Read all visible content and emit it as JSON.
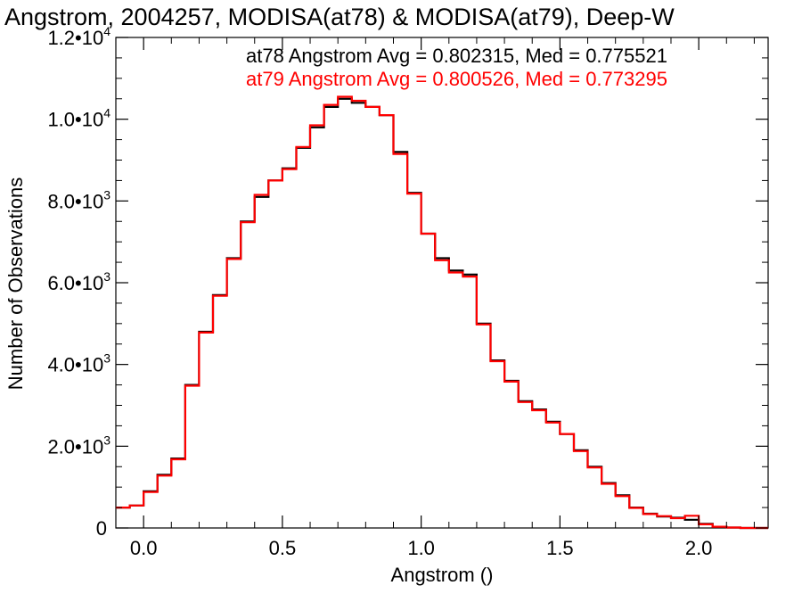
{
  "chart_data": {
    "type": "line",
    "title": "Angstrom, 2004257, MODISA(at78) & MODISA(at79), Deep-W",
    "xlabel": "Angstrom ()",
    "ylabel": "Number of Observations",
    "xlim": [
      -0.1,
      2.25
    ],
    "ylim": [
      0,
      12000
    ],
    "grid": false,
    "x_ticks": [
      {
        "value": 0.0,
        "label": "0.0"
      },
      {
        "value": 0.5,
        "label": "0.5"
      },
      {
        "value": 1.0,
        "label": "1.0"
      },
      {
        "value": 1.5,
        "label": "1.5"
      },
      {
        "value": 2.0,
        "label": "2.0"
      }
    ],
    "y_ticks": [
      {
        "value": 0,
        "mant": "0",
        "exp": ""
      },
      {
        "value": 2000,
        "mant": "2.0•10",
        "exp": "3"
      },
      {
        "value": 4000,
        "mant": "4.0•10",
        "exp": "3"
      },
      {
        "value": 6000,
        "mant": "6.0•10",
        "exp": "3"
      },
      {
        "value": 8000,
        "mant": "8.0•10",
        "exp": "3"
      },
      {
        "value": 10000,
        "mant": "1.0•10",
        "exp": "4"
      },
      {
        "value": 12000,
        "mant": "1.2•10",
        "exp": "4"
      }
    ],
    "annotations": [
      {
        "text": "at78 Angstrom Avg = 0.802315, Med = 0.775521",
        "color": "#000000"
      },
      {
        "text": "at79 Angstrom Avg = 0.800526, Med = 0.773295",
        "color": "#ff0000"
      }
    ],
    "series": [
      {
        "color": "#000000",
        "x": [
          -0.1,
          -0.05,
          0.0,
          0.05,
          0.1,
          0.15,
          0.2,
          0.25,
          0.3,
          0.35,
          0.4,
          0.45,
          0.5,
          0.55,
          0.6,
          0.65,
          0.7,
          0.75,
          0.8,
          0.85,
          0.9,
          0.95,
          1.0,
          1.05,
          1.1,
          1.15,
          1.2,
          1.25,
          1.3,
          1.35,
          1.4,
          1.45,
          1.5,
          1.55,
          1.6,
          1.65,
          1.7,
          1.75,
          1.8,
          1.85,
          1.9,
          1.95,
          2.0,
          2.05,
          2.1,
          2.15,
          2.2
        ],
        "values": [
          500,
          550,
          900,
          1300,
          1700,
          3500,
          4800,
          5700,
          6600,
          7500,
          8100,
          8500,
          8800,
          9300,
          9800,
          10300,
          10500,
          10400,
          10300,
          10100,
          9200,
          8200,
          7200,
          6600,
          6300,
          6200,
          5000,
          4100,
          3600,
          3100,
          2900,
          2600,
          2300,
          1900,
          1500,
          1100,
          800,
          500,
          350,
          280,
          250,
          200,
          100,
          30,
          10,
          0,
          0
        ]
      },
      {
        "color": "#ff0000",
        "x": [
          -0.1,
          -0.05,
          0.0,
          0.05,
          0.1,
          0.15,
          0.2,
          0.25,
          0.3,
          0.35,
          0.4,
          0.45,
          0.5,
          0.55,
          0.6,
          0.65,
          0.7,
          0.75,
          0.8,
          0.85,
          0.9,
          0.95,
          1.0,
          1.05,
          1.1,
          1.15,
          1.2,
          1.25,
          1.3,
          1.35,
          1.4,
          1.45,
          1.5,
          1.55,
          1.6,
          1.65,
          1.7,
          1.75,
          1.8,
          1.85,
          1.9,
          1.95,
          2.0,
          2.05,
          2.1,
          2.15,
          2.2
        ],
        "values": [
          500,
          550,
          880,
          1280,
          1680,
          3480,
          4780,
          5680,
          6580,
          7480,
          8150,
          8500,
          8780,
          9320,
          9850,
          10350,
          10550,
          10450,
          10300,
          10100,
          9150,
          8180,
          7200,
          6550,
          6250,
          6150,
          4980,
          4080,
          3580,
          3080,
          2880,
          2580,
          2300,
          1880,
          1480,
          1080,
          780,
          490,
          340,
          290,
          240,
          300,
          90,
          30,
          10,
          0,
          0
        ]
      }
    ]
  }
}
